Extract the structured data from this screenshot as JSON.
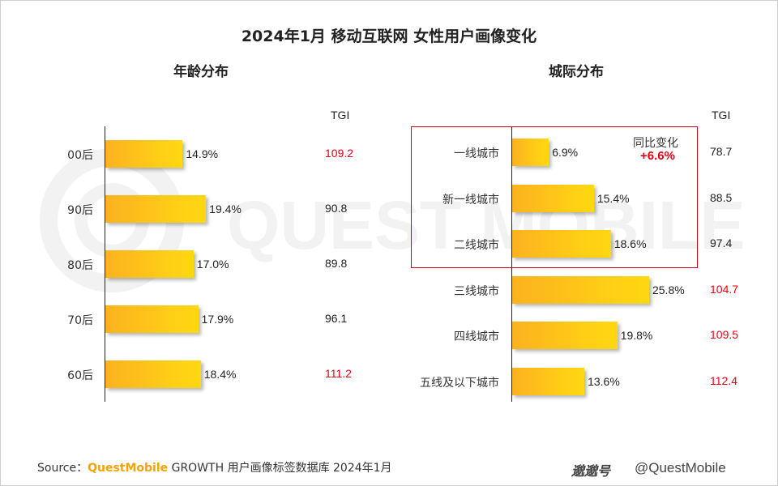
{
  "title": "2024年1月 移动互联网 女性用户画像变化",
  "watermark_text": "QUEST MOBILE",
  "chart_data": [
    {
      "type": "bar",
      "orientation": "horizontal",
      "title": "年龄分布",
      "categories": [
        "00后",
        "90后",
        "80后",
        "70后",
        "60后"
      ],
      "values": [
        14.9,
        19.4,
        17.0,
        17.9,
        18.4
      ],
      "value_labels": [
        "14.9%",
        "19.4%",
        "17.0%",
        "17.9%",
        "18.4%"
      ],
      "tgi_header": "TGI",
      "tgi": [
        "109.2",
        "90.8",
        "89.8",
        "96.1",
        "111.2"
      ],
      "tgi_highlight": [
        true,
        false,
        false,
        false,
        true
      ],
      "xlim": [
        0,
        30
      ],
      "grid": false
    },
    {
      "type": "bar",
      "orientation": "horizontal",
      "title": "城际分布",
      "categories": [
        "一线城市",
        "新一线城市",
        "二线城市",
        "三线城市",
        "四线城市",
        "五线及以下城市"
      ],
      "values": [
        6.9,
        15.4,
        18.6,
        25.8,
        19.8,
        13.6
      ],
      "value_labels": [
        "6.9%",
        "15.4%",
        "18.6%",
        "25.8%",
        "19.8%",
        "13.6%"
      ],
      "tgi_header": "TGI",
      "tgi": [
        "78.7",
        "88.5",
        "97.4",
        "104.7",
        "109.5",
        "112.4"
      ],
      "tgi_highlight": [
        false,
        false,
        false,
        true,
        true,
        true
      ],
      "annotation": {
        "label": "同比变化",
        "value": "+6.6%"
      },
      "xlim": [
        0,
        30
      ],
      "grid": false
    }
  ],
  "footer": {
    "prefix": "Source：",
    "brand": "QuestMobile",
    "text": " GROWTH 用户画像标签数据库 2024年1月"
  },
  "logo": {
    "mark": "邈邈号",
    "handle": "@QuestMobile"
  },
  "colors": {
    "highlight_red": "#e60012",
    "bar_start": "#fbb21f",
    "bar_end": "#ffd810",
    "brand": "#f4a300"
  }
}
